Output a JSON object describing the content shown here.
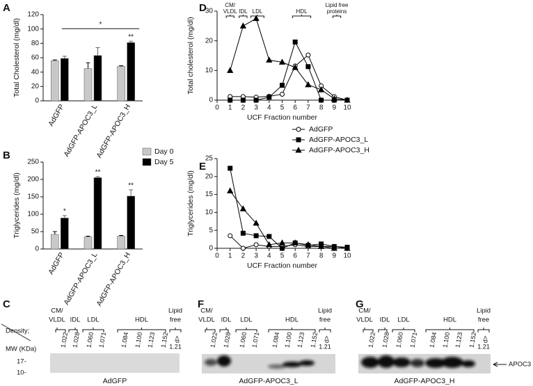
{
  "chart_data": [
    {
      "label": "A",
      "type": "bar",
      "ylabel": "Total Cholesterol (mg/dl)",
      "categories": [
        "AdGFP",
        "AdGFP-APOC3_L",
        "AdGFP-APOC3_H"
      ],
      "series": [
        {
          "name": "Day 0",
          "color": "#c8c8c8",
          "values": [
            56,
            45,
            48
          ],
          "errors": [
            1,
            8,
            1
          ]
        },
        {
          "name": "Day 5",
          "color": "#000000",
          "values": [
            59,
            63,
            81
          ],
          "errors": [
            3,
            11,
            2
          ]
        }
      ],
      "ylim": [
        0,
        120
      ],
      "yticks": [
        0,
        20,
        40,
        60,
        80,
        100,
        120
      ],
      "legend": false,
      "annotations": [
        {
          "text": "*",
          "span": [
            "AdGFP",
            "AdGFP-APOC3_H"
          ]
        },
        {
          "text": "**",
          "category": "AdGFP-APOC3_H",
          "series": "Day 5"
        }
      ]
    },
    {
      "label": "B",
      "type": "bar",
      "ylabel": "Triglycerides (mg/dl)",
      "categories": [
        "AdGFP",
        "AdGFP-APOC3_L",
        "AdGFP-APOC3_H"
      ],
      "series": [
        {
          "name": "Day 0",
          "color": "#c8c8c8",
          "values": [
            42,
            35,
            37
          ],
          "errors": [
            8,
            2,
            2
          ]
        },
        {
          "name": "Day 5",
          "color": "#000000",
          "values": [
            89,
            205,
            152
          ],
          "errors": [
            7,
            3,
            18
          ]
        }
      ],
      "ylim": [
        0,
        250
      ],
      "yticks": [
        0,
        50,
        100,
        150,
        200,
        250
      ],
      "legend": true,
      "annotations": [
        {
          "text": "*",
          "category": "AdGFP",
          "series": "Day 5"
        },
        {
          "text": "**",
          "category": "AdGFP-APOC3_L",
          "series": "Day 5"
        },
        {
          "text": "**",
          "category": "AdGFP-APOC3_H",
          "series": "Day 5"
        }
      ]
    },
    {
      "label": "D",
      "type": "line",
      "ylabel": "Total cholesterol (mg/dl)",
      "xlabel": "UCF Fraction number",
      "x": [
        1,
        2,
        3,
        4,
        5,
        6,
        7,
        8,
        9,
        10
      ],
      "xlim": [
        0,
        10
      ],
      "xticks": [
        0,
        1,
        2,
        3,
        4,
        5,
        6,
        7,
        8,
        9,
        10
      ],
      "ylim": [
        0,
        30
      ],
      "yticks": [
        0,
        10,
        20,
        30
      ],
      "legend": false,
      "fraction_labels": [
        [
          "CM/",
          "VLDL"
        ],
        [
          "IDL"
        ],
        [
          "LDL"
        ],
        [
          "HDL"
        ],
        [
          "Lipid free",
          "proteins"
        ]
      ],
      "series": [
        {
          "name": "AdGFP",
          "color": "#000000",
          "marker": "circle",
          "marker_fill": "#ffffff",
          "values": [
            1.2,
            1.2,
            1.0,
            1.3,
            2.0,
            11.5,
            15.2,
            4.8,
            1.2,
            0
          ]
        },
        {
          "name": "AdGFP-APOC3_L",
          "color": "#000000",
          "marker": "square",
          "marker_fill": "#000000",
          "values": [
            0,
            0,
            0,
            1.0,
            5.0,
            19.6,
            11.3,
            0,
            0,
            0
          ]
        },
        {
          "name": "AdGFP-APOC3_H",
          "color": "#000000",
          "marker": "triangle",
          "marker_fill": "#000000",
          "values": [
            10,
            25,
            27.5,
            13.5,
            12.8,
            11,
            5.2,
            3.5,
            0.5,
            0
          ]
        }
      ]
    },
    {
      "label": "E",
      "type": "line",
      "ylabel": "Triglycerides (mg/dl)",
      "xlabel": "UCF Fraction number",
      "x": [
        1,
        2,
        3,
        4,
        5,
        6,
        7,
        8,
        9,
        10
      ],
      "xlim": [
        0,
        10
      ],
      "xticks": [
        0,
        1,
        2,
        3,
        4,
        5,
        6,
        7,
        8,
        9,
        10
      ],
      "ylim": [
        0,
        25
      ],
      "yticks": [
        0,
        5,
        10,
        15,
        20,
        25
      ],
      "legend": true,
      "series": [
        {
          "name": "AdGFP",
          "color": "#000000",
          "marker": "circle",
          "marker_fill": "#ffffff",
          "values": [
            3.5,
            0,
            1.0,
            0.5,
            0.5,
            1.0,
            0.5,
            0.5,
            0.5,
            0
          ]
        },
        {
          "name": "AdGFP-APOC3_L",
          "color": "#000000",
          "marker": "square",
          "marker_fill": "#000000",
          "values": [
            22.3,
            4.2,
            3.5,
            3.3,
            0,
            1.5,
            0.8,
            1.2,
            0.5,
            0.3
          ]
        },
        {
          "name": "AdGFP-APOC3_H",
          "color": "#000000",
          "marker": "triangle",
          "marker_fill": "#000000",
          "values": [
            16,
            11,
            7,
            1.0,
            1.5,
            1.5,
            1.0,
            0.5,
            0,
            0
          ]
        }
      ]
    }
  ],
  "blots": {
    "fractions": [
      [
        "CM/",
        "VLDL"
      ],
      [
        "IDL"
      ],
      [
        "LDL"
      ],
      [
        "HDL"
      ],
      [
        "Lipid",
        "free"
      ]
    ],
    "density_label": "Density;",
    "mw_label": "MW (KDa)",
    "densities": [
      "1.022",
      "1.028",
      "1.060",
      "1.071",
      "1.084",
      "1.100",
      "1.123",
      "1.152"
    ],
    "last_density": [
      "d>",
      "1.21"
    ],
    "mw_ticks": [
      "17-",
      "10-"
    ],
    "target": "APOC3",
    "panels": [
      {
        "label": "C",
        "caption": "AdGFP"
      },
      {
        "label": "F",
        "caption": "AdGFP-APOC3_L"
      },
      {
        "label": "G",
        "caption": "AdGFP-APOC3_H"
      }
    ]
  }
}
